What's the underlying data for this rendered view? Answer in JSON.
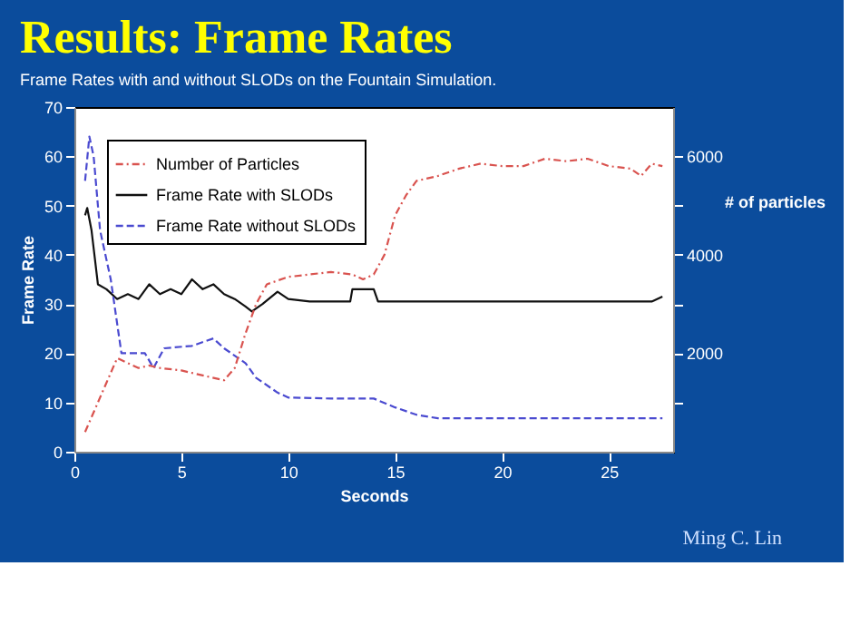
{
  "chart_data": {
    "type": "line",
    "title": "Results: Frame Rates",
    "subtitle": "Frame Rates with and without SLODs on the Fountain Simulation.",
    "xlabel": "Seconds",
    "ylabel": "Frame Rate",
    "y2label": "# of particles",
    "annotations": [
      "Ming C. Lin"
    ],
    "xlim": [
      0,
      28
    ],
    "xticks": [
      0,
      5,
      10,
      15,
      20,
      25
    ],
    "ylim": [
      0,
      70
    ],
    "yticks": [
      0,
      10,
      20,
      30,
      40,
      50,
      60,
      70
    ],
    "y2lim": [
      0,
      7000
    ],
    "y2ticks": [
      {
        "value": 1000,
        "label": null
      },
      2000,
      {
        "value": 3000,
        "label": null
      },
      4000,
      {
        "value": 5000,
        "label": null
      },
      6000
    ],
    "legend": "top left",
    "grid": false,
    "series": [
      {
        "name": "Number of Particles",
        "color": "#d9534f",
        "line_style": "dotted",
        "axis": "y2",
        "x": [
          0.5,
          1,
          1.5,
          2,
          2.5,
          3,
          3.5,
          4,
          5,
          6,
          7,
          7.5,
          8,
          8.5,
          9,
          10,
          11,
          12,
          13,
          13.5,
          14,
          14.5,
          15,
          15.5,
          16,
          17,
          18,
          19,
          20,
          21,
          22,
          23,
          24,
          25,
          26,
          26.5,
          27,
          27.5
        ],
        "values": [
          400,
          900,
          1400,
          1900,
          1800,
          1700,
          1750,
          1700,
          1650,
          1550,
          1450,
          1700,
          2400,
          3000,
          3400,
          3550,
          3600,
          3650,
          3600,
          3500,
          3600,
          4000,
          4800,
          5200,
          5500,
          5600,
          5750,
          5850,
          5800,
          5800,
          5950,
          5900,
          5950,
          5800,
          5750,
          5600,
          5850,
          5800
        ]
      },
      {
        "name": "Frame Rate with SLODs",
        "color": "#111111",
        "line_style": "solid",
        "x": [
          0.5,
          0.6,
          0.8,
          1.1,
          1.5,
          2,
          2.5,
          3,
          3.5,
          4,
          4.5,
          5,
          5.5,
          6,
          6.5,
          7,
          7.5,
          8,
          8.3,
          8.8,
          9.5,
          10,
          11,
          12,
          12.9,
          13,
          13.5,
          14,
          14.2,
          15,
          16,
          17,
          18,
          19,
          20,
          21,
          22,
          23,
          24,
          25,
          26,
          27,
          27.5
        ],
        "values": [
          48,
          49.5,
          45,
          34,
          33,
          31,
          32,
          31,
          34,
          32,
          33,
          32,
          35,
          33,
          34,
          32,
          31,
          29.5,
          28.5,
          30,
          32.5,
          31,
          30.5,
          30.5,
          30.5,
          33,
          33,
          33,
          30.5,
          30.5,
          30.5,
          30.5,
          30.5,
          30.5,
          30.5,
          30.5,
          30.5,
          30.5,
          30.5,
          30.5,
          30.5,
          30.5,
          31.5
        ]
      },
      {
        "name": "Frame Rate without SLODs",
        "color": "#4a4ad0",
        "line_style": "dashed",
        "x": [
          0.5,
          0.7,
          0.9,
          1.2,
          1.7,
          2.2,
          3.3,
          3.7,
          4.2,
          5.5,
          6.5,
          7,
          8,
          8.5,
          9.5,
          10,
          12,
          14,
          15,
          16,
          17,
          20,
          25,
          27.5
        ],
        "values": [
          55,
          64,
          60,
          45,
          35,
          20,
          20,
          17,
          21,
          21.5,
          23,
          21,
          18,
          15,
          12,
          11,
          10.8,
          10.8,
          9,
          7.5,
          6.8,
          6.8,
          6.8,
          6.8
        ]
      }
    ]
  }
}
